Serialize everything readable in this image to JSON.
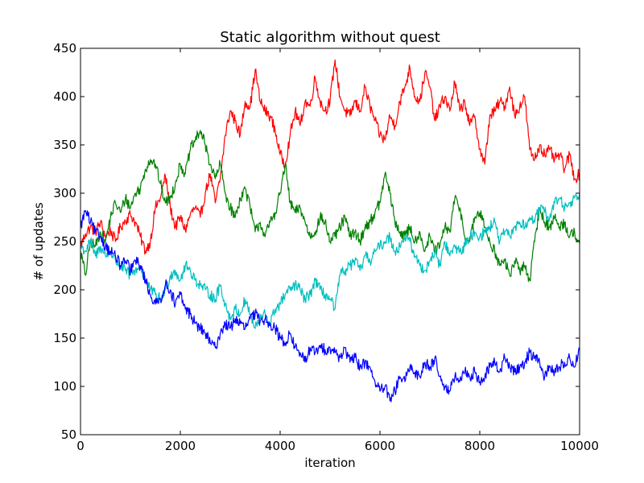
{
  "chart_data": {
    "type": "line",
    "title": "Static algorithm without quest",
    "xlabel": "iteration",
    "ylabel": "# of updates",
    "xlim": [
      0,
      10000
    ],
    "ylim": [
      50,
      450
    ],
    "xticks": [
      0,
      2000,
      4000,
      6000,
      8000,
      10000
    ],
    "yticks": [
      50,
      100,
      150,
      200,
      250,
      300,
      350,
      400,
      450
    ],
    "grid": false,
    "legend": "none",
    "series": [
      {
        "color": "#ff0000",
        "x": [
          0,
          100,
          200,
          300,
          400,
          500,
          600,
          700,
          800,
          900,
          1000,
          1100,
          1200,
          1300,
          1400,
          1500,
          1600,
          1700,
          1800,
          1900,
          2000,
          2100,
          2200,
          2300,
          2400,
          2500,
          2600,
          2700,
          2800,
          2900,
          3000,
          3100,
          3200,
          3300,
          3400,
          3500,
          3600,
          3700,
          3800,
          3900,
          4000,
          4100,
          4200,
          4300,
          4400,
          4500,
          4600,
          4700,
          4800,
          4900,
          5000,
          5100,
          5200,
          5300,
          5400,
          5500,
          5600,
          5700,
          5800,
          5900,
          6000,
          6100,
          6200,
          6300,
          6400,
          6500,
          6600,
          6700,
          6800,
          6900,
          7000,
          7100,
          7200,
          7300,
          7400,
          7500,
          7600,
          7700,
          7800,
          7900,
          8000,
          8100,
          8200,
          8300,
          8400,
          8500,
          8600,
          8700,
          8800,
          8900,
          9000,
          9100,
          9200,
          9300,
          9400,
          9500,
          9600,
          9700,
          9800,
          9900,
          10000
        ],
        "y": [
          245,
          258,
          265,
          260,
          270,
          255,
          262,
          250,
          265,
          272,
          278,
          270,
          255,
          240,
          250,
          285,
          295,
          318,
          285,
          265,
          275,
          262,
          278,
          285,
          275,
          300,
          320,
          290,
          315,
          360,
          385,
          375,
          360,
          395,
          390,
          428,
          395,
          385,
          380,
          365,
          340,
          330,
          360,
          385,
          370,
          395,
          390,
          420,
          395,
          385,
          395,
          438,
          400,
          385,
          380,
          395,
          385,
          410,
          390,
          375,
          360,
          355,
          380,
          370,
          395,
          410,
          430,
          400,
          395,
          425,
          410,
          375,
          390,
          400,
          385,
          415,
          385,
          395,
          370,
          380,
          345,
          330,
          380,
          385,
          395,
          390,
          410,
          380,
          390,
          400,
          345,
          335,
          350,
          340,
          345,
          335,
          340,
          325,
          340,
          315,
          320
        ]
      },
      {
        "color": "#008000",
        "x": [
          0,
          100,
          200,
          300,
          400,
          500,
          600,
          700,
          800,
          900,
          1000,
          1100,
          1200,
          1300,
          1400,
          1500,
          1600,
          1700,
          1800,
          1900,
          2000,
          2100,
          2200,
          2300,
          2400,
          2500,
          2600,
          2700,
          2800,
          2900,
          3000,
          3100,
          3200,
          3300,
          3400,
          3500,
          3600,
          3700,
          3800,
          3900,
          4000,
          4100,
          4200,
          4300,
          4400,
          4500,
          4600,
          4700,
          4800,
          4900,
          5000,
          5100,
          5200,
          5300,
          5400,
          5500,
          5600,
          5700,
          5800,
          5900,
          6000,
          6100,
          6200,
          6300,
          6400,
          6500,
          6600,
          6700,
          6800,
          6900,
          7000,
          7100,
          7200,
          7300,
          7400,
          7500,
          7600,
          7700,
          7800,
          7900,
          8000,
          8100,
          8200,
          8300,
          8400,
          8500,
          8600,
          8700,
          8800,
          8900,
          9000,
          9100,
          9200,
          9300,
          9400,
          9500,
          9600,
          9700,
          9800,
          9900,
          10000
        ],
        "y": [
          240,
          215,
          250,
          245,
          260,
          250,
          275,
          290,
          280,
          295,
          285,
          300,
          305,
          325,
          335,
          330,
          310,
          290,
          295,
          310,
          330,
          320,
          345,
          355,
          365,
          350,
          330,
          315,
          330,
          300,
          285,
          275,
          295,
          305,
          285,
          260,
          270,
          255,
          270,
          280,
          300,
          330,
          290,
          280,
          285,
          270,
          255,
          260,
          275,
          270,
          250,
          255,
          265,
          275,
          255,
          260,
          250,
          265,
          270,
          280,
          290,
          320,
          300,
          270,
          260,
          255,
          265,
          250,
          260,
          240,
          255,
          240,
          245,
          265,
          260,
          295,
          285,
          255,
          250,
          275,
          280,
          265,
          250,
          240,
          225,
          230,
          215,
          230,
          220,
          225,
          210,
          250,
          285,
          270,
          265,
          275,
          265,
          270,
          255,
          260,
          248
        ]
      },
      {
        "color": "#00bfbf",
        "x": [
          0,
          100,
          200,
          300,
          400,
          500,
          600,
          700,
          800,
          900,
          1000,
          1100,
          1200,
          1300,
          1400,
          1500,
          1600,
          1700,
          1800,
          1900,
          2000,
          2100,
          2200,
          2300,
          2400,
          2500,
          2600,
          2700,
          2800,
          2900,
          3000,
          3100,
          3200,
          3300,
          3400,
          3500,
          3600,
          3700,
          3800,
          3900,
          4000,
          4100,
          4200,
          4300,
          4400,
          4500,
          4600,
          4700,
          4800,
          4900,
          5000,
          5100,
          5200,
          5300,
          5400,
          5500,
          5600,
          5700,
          5800,
          5900,
          6000,
          6100,
          6200,
          6300,
          6400,
          6500,
          6600,
          6700,
          6800,
          6900,
          7000,
          7100,
          7200,
          7300,
          7400,
          7500,
          7600,
          7700,
          7800,
          7900,
          8000,
          8100,
          8200,
          8300,
          8400,
          8500,
          8600,
          8700,
          8800,
          8900,
          9000,
          9100,
          9200,
          9300,
          9400,
          9500,
          9600,
          9700,
          9800,
          9900,
          10000
        ],
        "y": [
          245,
          240,
          250,
          235,
          245,
          235,
          240,
          230,
          225,
          220,
          215,
          220,
          225,
          210,
          200,
          195,
          190,
          200,
          215,
          220,
          210,
          225,
          220,
          210,
          205,
          200,
          195,
          190,
          205,
          185,
          170,
          180,
          175,
          190,
          175,
          160,
          170,
          175,
          165,
          180,
          185,
          195,
          200,
          205,
          200,
          190,
          195,
          210,
          200,
          195,
          190,
          180,
          215,
          220,
          225,
          230,
          220,
          235,
          230,
          240,
          245,
          250,
          255,
          240,
          245,
          255,
          250,
          235,
          225,
          220,
          230,
          240,
          225,
          250,
          235,
          245,
          240,
          245,
          255,
          260,
          255,
          260,
          265,
          270,
          250,
          260,
          255,
          265,
          270,
          265,
          275,
          270,
          285,
          280,
          275,
          290,
          295,
          285,
          290,
          295,
          300
        ]
      },
      {
        "color": "#0000ff",
        "x": [
          0,
          100,
          200,
          300,
          400,
          500,
          600,
          700,
          800,
          900,
          1000,
          1100,
          1200,
          1300,
          1400,
          1500,
          1600,
          1700,
          1800,
          1900,
          2000,
          2100,
          2200,
          2300,
          2400,
          2500,
          2600,
          2700,
          2800,
          2900,
          3000,
          3100,
          3200,
          3300,
          3400,
          3500,
          3600,
          3700,
          3800,
          3900,
          4000,
          4100,
          4200,
          4300,
          4400,
          4500,
          4600,
          4700,
          4800,
          4900,
          5000,
          5100,
          5200,
          5300,
          5400,
          5500,
          5600,
          5700,
          5800,
          5900,
          6000,
          6100,
          6200,
          6300,
          6400,
          6500,
          6600,
          6700,
          6800,
          6900,
          7000,
          7100,
          7200,
          7300,
          7400,
          7500,
          7600,
          7700,
          7800,
          7900,
          8000,
          8100,
          8200,
          8300,
          8400,
          8500,
          8600,
          8700,
          8800,
          8900,
          9000,
          9100,
          9200,
          9300,
          9400,
          9500,
          9600,
          9700,
          9800,
          9900,
          10000
        ],
        "y": [
          265,
          282,
          270,
          260,
          255,
          245,
          240,
          235,
          225,
          230,
          220,
          230,
          225,
          210,
          195,
          185,
          190,
          205,
          200,
          185,
          195,
          180,
          175,
          165,
          160,
          155,
          145,
          140,
          155,
          165,
          160,
          170,
          165,
          160,
          170,
          175,
          168,
          170,
          165,
          160,
          150,
          145,
          155,
          140,
          135,
          125,
          140,
          135,
          140,
          138,
          140,
          135,
          130,
          140,
          125,
          130,
          120,
          125,
          120,
          105,
          95,
          100,
          85,
          95,
          110,
          105,
          120,
          115,
          110,
          125,
          120,
          130,
          110,
          100,
          95,
          110,
          105,
          115,
          110,
          115,
          105,
          110,
          120,
          125,
          115,
          130,
          120,
          115,
          120,
          125,
          135,
          130,
          125,
          110,
          120,
          115,
          120,
          125,
          130,
          120,
          140
        ]
      }
    ]
  }
}
